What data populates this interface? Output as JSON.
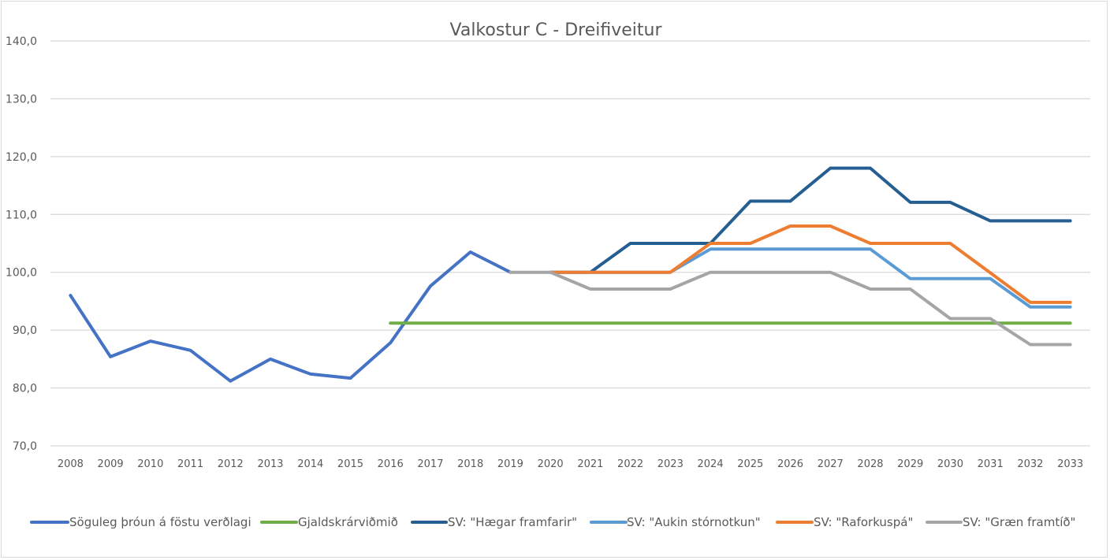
{
  "chart_data": {
    "type": "line",
    "title": "Valkostur C - Dreifiveitur",
    "xlabel": "",
    "ylabel": "",
    "ylim": [
      70,
      140
    ],
    "y_ticks": [
      "70,0",
      "80,0",
      "90,0",
      "100,0",
      "110,0",
      "120,0",
      "130,0",
      "140,0"
    ],
    "y_tick_values": [
      70,
      80,
      90,
      100,
      110,
      120,
      130,
      140
    ],
    "grid": true,
    "legend_position": "bottom",
    "categories": [
      "2008",
      "2009",
      "2010",
      "2011",
      "2012",
      "2013",
      "2014",
      "2015",
      "2016",
      "2017",
      "2018",
      "2019",
      "2020",
      "2021",
      "2022",
      "2023",
      "2024",
      "2025",
      "2026",
      "2027",
      "2028",
      "2029",
      "2030",
      "2031",
      "2032",
      "2033"
    ],
    "series": [
      {
        "name": "Söguleg þróun á föstu verðlagi",
        "color": "#4472c4",
        "values": [
          96.0,
          85.4,
          88.1,
          86.5,
          81.2,
          85.0,
          82.4,
          81.7,
          87.8,
          97.6,
          103.5,
          100.0,
          null,
          null,
          null,
          null,
          null,
          null,
          null,
          null,
          null,
          null,
          null,
          null,
          null,
          null
        ]
      },
      {
        "name": "Gjaldskrárviðmið",
        "color": "#70ad47",
        "values": [
          null,
          null,
          null,
          null,
          null,
          null,
          null,
          null,
          91.2,
          91.2,
          91.2,
          91.2,
          91.2,
          91.2,
          91.2,
          91.2,
          91.2,
          91.2,
          91.2,
          91.2,
          91.2,
          91.2,
          91.2,
          91.2,
          91.2,
          91.2
        ]
      },
      {
        "name": "SV: \"Hægar framfarir\"",
        "color": "#255e91",
        "values": [
          null,
          null,
          null,
          null,
          null,
          null,
          null,
          null,
          null,
          null,
          null,
          null,
          100.0,
          100.0,
          105.0,
          105.0,
          105.0,
          112.3,
          112.3,
          118.0,
          118.0,
          112.1,
          112.1,
          108.9,
          108.9,
          108.9
        ]
      },
      {
        "name": "SV: \"Aukin stórnotkun\"",
        "color": "#5b9bd5",
        "values": [
          null,
          null,
          null,
          null,
          null,
          null,
          null,
          null,
          null,
          null,
          null,
          null,
          100.0,
          100.0,
          100.0,
          100.0,
          104.0,
          104.0,
          104.0,
          104.0,
          104.0,
          98.9,
          98.9,
          98.9,
          94.0,
          94.0
        ]
      },
      {
        "name": "SV: \"Raforkuspá\"",
        "color": "#ed7d31",
        "values": [
          null,
          null,
          null,
          null,
          null,
          null,
          null,
          null,
          null,
          null,
          null,
          null,
          100.0,
          100.0,
          100.0,
          100.0,
          105.0,
          105.0,
          108.0,
          108.0,
          105.0,
          105.0,
          105.0,
          99.9,
          94.8,
          94.8
        ]
      },
      {
        "name": "SV: \"Græn framtíð\"",
        "color": "#a5a5a5",
        "values": [
          null,
          null,
          null,
          null,
          null,
          null,
          null,
          null,
          null,
          null,
          null,
          100.0,
          100.0,
          97.1,
          97.1,
          97.1,
          100.0,
          100.0,
          100.0,
          100.0,
          97.1,
          97.1,
          92.0,
          92.0,
          87.5,
          87.5
        ]
      }
    ]
  }
}
